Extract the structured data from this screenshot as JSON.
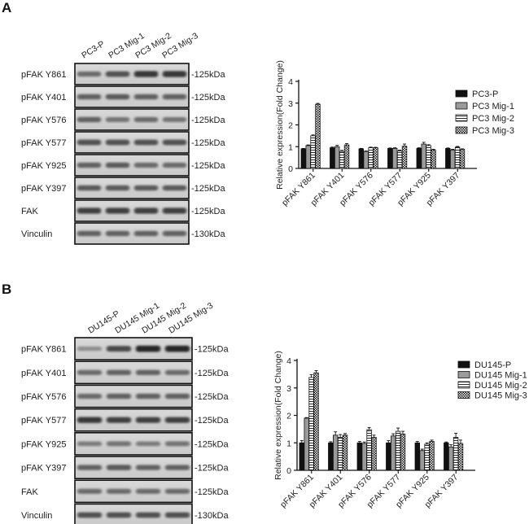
{
  "panels": [
    {
      "letter": "A",
      "lane_labels": [
        "PC3-P",
        "PC3 Mig-1",
        "PC3 Mig-2",
        "PC3 Mig-3"
      ],
      "blots": [
        {
          "label": "pFAK Y861",
          "size": "-125kDa",
          "intensity": [
            0.55,
            0.7,
            0.85,
            0.85
          ]
        },
        {
          "label": "pFAK Y401",
          "size": "-125kDa",
          "intensity": [
            0.6,
            0.65,
            0.6,
            0.6
          ]
        },
        {
          "label": "pFAK Y576",
          "size": "-125kDa",
          "intensity": [
            0.6,
            0.5,
            0.55,
            0.5
          ]
        },
        {
          "label": "pFAK Y577",
          "size": "-125kDa",
          "intensity": [
            0.7,
            0.7,
            0.7,
            0.7
          ]
        },
        {
          "label": "pFAK Y925",
          "size": "-125kDa",
          "intensity": [
            0.6,
            0.65,
            0.55,
            0.55
          ]
        },
        {
          "label": "pFAK Y397",
          "size": "-125kDa",
          "intensity": [
            0.65,
            0.65,
            0.65,
            0.65
          ]
        },
        {
          "label": "FAK",
          "size": "-125kDa",
          "intensity": [
            0.8,
            0.8,
            0.8,
            0.8
          ]
        },
        {
          "label": "Vinculin",
          "size": "-130kDa",
          "intensity": [
            0.6,
            0.6,
            0.6,
            0.6
          ]
        }
      ]
    },
    {
      "letter": "B",
      "lane_labels": [
        "DU145-P",
        "DU145 Mig-1",
        "DU145 Mig-2",
        "DU145 Mig-3"
      ],
      "blots": [
        {
          "label": "pFAK Y861",
          "size": "-125kDa",
          "intensity": [
            0.35,
            0.75,
            0.95,
            0.95
          ]
        },
        {
          "label": "pFAK Y401",
          "size": "-125kDa",
          "intensity": [
            0.55,
            0.6,
            0.6,
            0.55
          ]
        },
        {
          "label": "pFAK Y576",
          "size": "-125kDa",
          "intensity": [
            0.55,
            0.6,
            0.6,
            0.6
          ]
        },
        {
          "label": "pFAK Y577",
          "size": "-125kDa",
          "intensity": [
            0.85,
            0.8,
            0.8,
            0.8
          ]
        },
        {
          "label": "pFAK Y925",
          "size": "-125kDa",
          "intensity": [
            0.45,
            0.5,
            0.45,
            0.5
          ]
        },
        {
          "label": "pFAK Y397",
          "size": "-125kDa",
          "intensity": [
            0.6,
            0.65,
            0.6,
            0.6
          ]
        },
        {
          "label": "FAK",
          "size": "-125kDa",
          "intensity": [
            0.55,
            0.55,
            0.55,
            0.55
          ]
        },
        {
          "label": "Vinculin",
          "size": "-130kDa",
          "intensity": [
            0.7,
            0.7,
            0.7,
            0.7
          ]
        }
      ]
    }
  ],
  "chart_data": [
    {
      "type": "bar",
      "panel": "A",
      "title": "",
      "xlabel": "",
      "ylabel": "Relative expression(Fold Change)",
      "ylim": [
        0,
        4
      ],
      "yticks": [
        "0",
        "1",
        "2",
        "3",
        "4"
      ],
      "categories": [
        "pFAK Y861",
        "pFAK Y401",
        "pFAK Y576",
        "pFAK Y577",
        "pFAK Y925",
        "pFAK Y397"
      ],
      "legend_position": "top-right",
      "series": [
        {
          "name": "PC3-P",
          "pattern": "solid-black",
          "values": [
            0.9,
            0.95,
            0.9,
            0.92,
            0.92,
            0.92
          ],
          "errors": [
            0.02,
            0.03,
            0.02,
            0.02,
            0.03,
            0.02
          ]
        },
        {
          "name": "PC3 Mig-1",
          "pattern": "solid-gray",
          "values": [
            1.05,
            1.0,
            0.78,
            0.92,
            1.12,
            0.85
          ],
          "errors": [
            0.03,
            0.06,
            0.02,
            0.03,
            0.08,
            0.03
          ]
        },
        {
          "name": "PC3 Mig-2",
          "pattern": "horizontal-lines",
          "values": [
            1.5,
            0.78,
            0.95,
            0.8,
            1.05,
            0.98
          ],
          "errors": [
            0.04,
            0.05,
            0.03,
            0.04,
            0.04,
            0.03
          ]
        },
        {
          "name": "PC3 Mig-3",
          "pattern": "checker",
          "values": [
            2.95,
            1.08,
            0.95,
            1.02,
            0.85,
            0.88
          ],
          "errors": [
            0.04,
            0.06,
            0.02,
            0.1,
            0.03,
            0.02
          ]
        }
      ],
      "grid": false
    },
    {
      "type": "bar",
      "panel": "B",
      "title": "",
      "xlabel": "",
      "ylabel": "Relative expression(Fold Change)",
      "ylim": [
        0,
        4
      ],
      "yticks": [
        "0",
        "1",
        "2",
        "3",
        "4"
      ],
      "categories": [
        "pFAK Y861",
        "pFAK Y401",
        "pFAK Y576",
        "pFAK Y577",
        "pFAK Y925",
        "pFAK Y397"
      ],
      "legend_position": "top-right",
      "series": [
        {
          "name": "DU145-P",
          "pattern": "solid-black",
          "values": [
            1.0,
            1.0,
            1.0,
            1.0,
            1.0,
            1.0
          ],
          "errors": [
            0.08,
            0.04,
            0.05,
            0.08,
            0.05,
            0.03
          ]
        },
        {
          "name": "DU145 Mig-1",
          "pattern": "solid-gray",
          "values": [
            1.9,
            1.28,
            0.98,
            1.25,
            0.72,
            0.85
          ],
          "errors": [
            0.02,
            0.12,
            0.05,
            0.08,
            0.05,
            0.08
          ]
        },
        {
          "name": "DU145 Mig-2",
          "pattern": "horizontal-lines",
          "values": [
            3.38,
            1.2,
            1.48,
            1.42,
            0.95,
            1.2
          ],
          "errors": [
            0.1,
            0.1,
            0.08,
            0.12,
            0.05,
            0.15
          ]
        },
        {
          "name": "DU145 Mig-3",
          "pattern": "checker",
          "values": [
            3.55,
            1.28,
            1.2,
            1.32,
            1.05,
            0.98
          ],
          "errors": [
            0.08,
            0.06,
            0.08,
            0.1,
            0.05,
            0.12
          ]
        }
      ],
      "grid": false
    }
  ]
}
